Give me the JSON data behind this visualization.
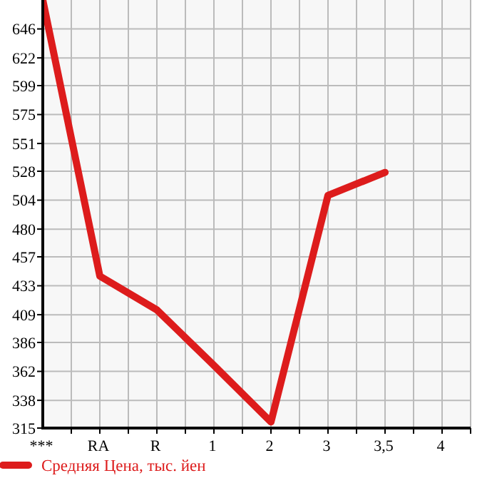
{
  "chart_data": {
    "type": "line",
    "categories": [
      "***",
      "RA",
      "R",
      "1",
      "2",
      "3",
      "3,5",
      "4"
    ],
    "series": [
      {
        "name": "Средняя Цена, тыс. йен",
        "color": "#dd1c1c",
        "values": [
          670,
          441,
          413,
          367,
          320,
          508,
          527,
          null
        ]
      }
    ],
    "ylim": [
      315,
      670
    ],
    "yticks": [
      315,
      338,
      362,
      386,
      409,
      433,
      457,
      480,
      504,
      528,
      551,
      575,
      599,
      622,
      646
    ],
    "grid": true,
    "legend": "bottom left",
    "marker": "none",
    "line_style": "solid"
  }
}
